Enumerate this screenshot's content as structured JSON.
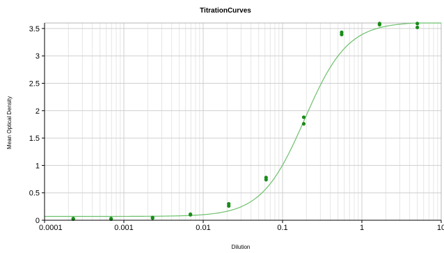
{
  "chart_data": {
    "type": "scatter",
    "title": "TitrationCurves",
    "xlabel": "Dilution",
    "ylabel": "Mean Optical Density",
    "x_scale": "log",
    "xlim": [
      0.0001,
      10
    ],
    "ylim": [
      0,
      3.6
    ],
    "x_ticks": [
      0.0001,
      0.001,
      0.01,
      0.1,
      1,
      10
    ],
    "x_tick_labels": [
      "0.0001",
      "0.001",
      "0.01",
      "0.1",
      "1",
      "10"
    ],
    "y_ticks": [
      0,
      0.5,
      1,
      1.5,
      2,
      2.5,
      3,
      3.5
    ],
    "y_tick_labels": [
      "0",
      "0.5",
      "1",
      "1.5",
      "2",
      "2.5",
      "3",
      "3.5"
    ],
    "grid": true,
    "legend": "none",
    "point_color": "#1a8c1a",
    "curve_color": "#6cc06c",
    "series": [
      {
        "points": [
          {
            "x": 0.00023,
            "y": 0.02
          },
          {
            "x": 0.00023,
            "y": 0.03
          },
          {
            "x": 0.00069,
            "y": 0.02
          },
          {
            "x": 0.00069,
            "y": 0.03
          },
          {
            "x": 0.0023,
            "y": 0.04
          },
          {
            "x": 0.0023,
            "y": 0.05
          },
          {
            "x": 0.0069,
            "y": 0.1
          },
          {
            "x": 0.0069,
            "y": 0.11
          },
          {
            "x": 0.021,
            "y": 0.26
          },
          {
            "x": 0.021,
            "y": 0.3
          },
          {
            "x": 0.062,
            "y": 0.74
          },
          {
            "x": 0.062,
            "y": 0.78
          },
          {
            "x": 0.185,
            "y": 1.76
          },
          {
            "x": 0.185,
            "y": 1.88
          },
          {
            "x": 0.556,
            "y": 3.39
          },
          {
            "x": 0.556,
            "y": 3.43
          },
          {
            "x": 1.67,
            "y": 3.57
          },
          {
            "x": 1.67,
            "y": 3.59
          },
          {
            "x": 5.0,
            "y": 3.52
          },
          {
            "x": 5.0,
            "y": 3.59
          }
        ]
      }
    ],
    "fit_curve": {
      "model": "4PL",
      "bottom": 0.07,
      "top": 3.62,
      "ec50": 0.19,
      "hill": 1.6
    }
  }
}
